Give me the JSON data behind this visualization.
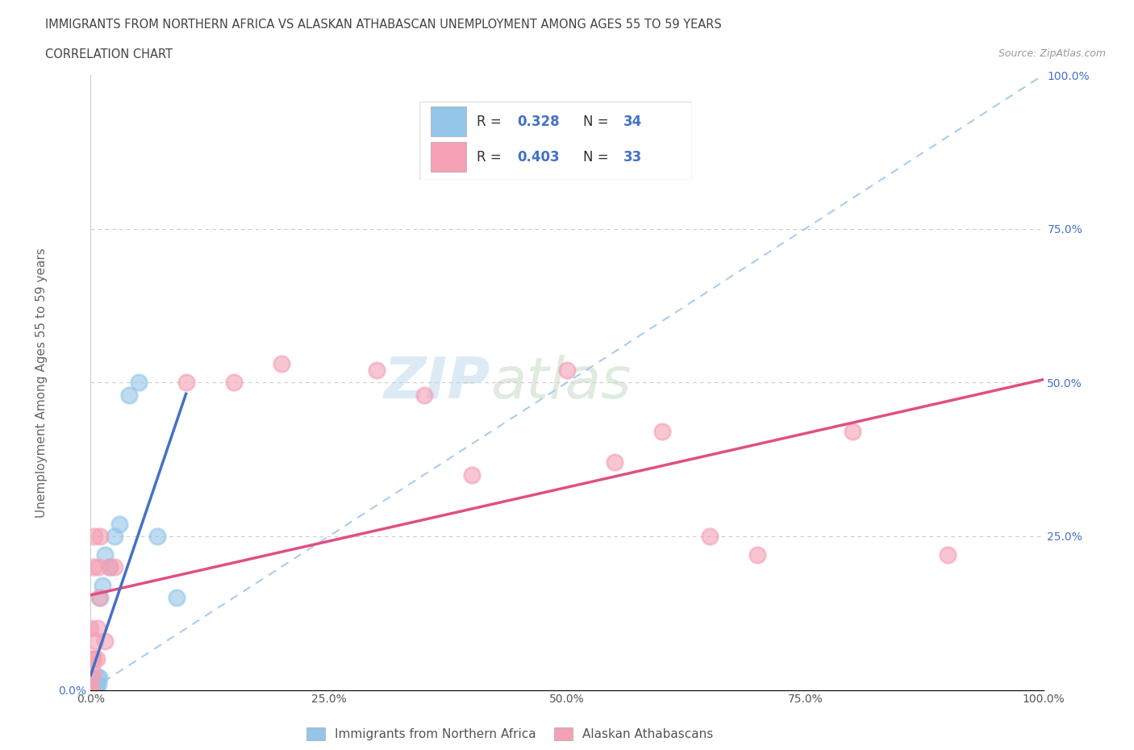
{
  "title1": "IMMIGRANTS FROM NORTHERN AFRICA VS ALASKAN ATHABASCAN UNEMPLOYMENT AMONG AGES 55 TO 59 YEARS",
  "title2": "CORRELATION CHART",
  "source": "Source: ZipAtlas.com",
  "ylabel": "Unemployment Among Ages 55 to 59 years",
  "xlabel_legend1": "Immigrants from Northern Africa",
  "xlabel_legend2": "Alaskan Athabascans",
  "R1": 0.328,
  "N1": 34,
  "R2": 0.403,
  "N2": 33,
  "color_blue": "#93C6E8",
  "color_pink": "#F4A0B5",
  "color_blue_line": "#4472C4",
  "color_pink_line": "#E05080",
  "watermark_zip": "ZIP",
  "watermark_atlas": "atlas",
  "blue_x": [
    0.0,
    0.0,
    0.0,
    0.0,
    0.0,
    0.0,
    0.0,
    0.0,
    0.0,
    0.0,
    0.001,
    0.001,
    0.002,
    0.002,
    0.003,
    0.003,
    0.004,
    0.004,
    0.005,
    0.005,
    0.006,
    0.007,
    0.008,
    0.009,
    0.01,
    0.012,
    0.015,
    0.02,
    0.025,
    0.03,
    0.04,
    0.05,
    0.07,
    0.09
  ],
  "blue_y": [
    0.0,
    0.0,
    0.0,
    0.0,
    0.0,
    0.001,
    0.002,
    0.003,
    0.005,
    0.008,
    0.0,
    0.002,
    0.003,
    0.005,
    0.003,
    0.01,
    0.005,
    0.008,
    0.0,
    0.005,
    0.01,
    0.02,
    0.01,
    0.02,
    0.15,
    0.17,
    0.22,
    0.2,
    0.25,
    0.27,
    0.48,
    0.5,
    0.25,
    0.15
  ],
  "pink_x": [
    0.0,
    0.0,
    0.0,
    0.0,
    0.001,
    0.001,
    0.002,
    0.002,
    0.003,
    0.003,
    0.004,
    0.005,
    0.006,
    0.007,
    0.008,
    0.009,
    0.01,
    0.015,
    0.02,
    0.025,
    0.1,
    0.15,
    0.2,
    0.3,
    0.35,
    0.4,
    0.5,
    0.55,
    0.6,
    0.65,
    0.7,
    0.8,
    0.9
  ],
  "pink_y": [
    0.0,
    0.0,
    0.0,
    0.1,
    0.0,
    0.02,
    0.03,
    0.05,
    0.05,
    0.2,
    0.25,
    0.08,
    0.05,
    0.1,
    0.2,
    0.15,
    0.25,
    0.08,
    0.2,
    0.2,
    0.5,
    0.5,
    0.53,
    0.52,
    0.48,
    0.35,
    0.52,
    0.37,
    0.42,
    0.25,
    0.22,
    0.42,
    0.22
  ],
  "xlim": [
    0.0,
    1.0
  ],
  "ylim": [
    0.0,
    1.0
  ],
  "xticks": [
    0.0,
    0.25,
    0.5,
    0.75,
    1.0
  ],
  "yticks": [
    0.25,
    0.5,
    0.75,
    1.0
  ],
  "xticklabels": [
    "0.0%",
    "25.0%",
    "50.0%",
    "75.0%",
    "100.0%"
  ],
  "right_yticklabels": [
    "25.0%",
    "50.0%",
    "75.0%",
    "100.0%"
  ]
}
